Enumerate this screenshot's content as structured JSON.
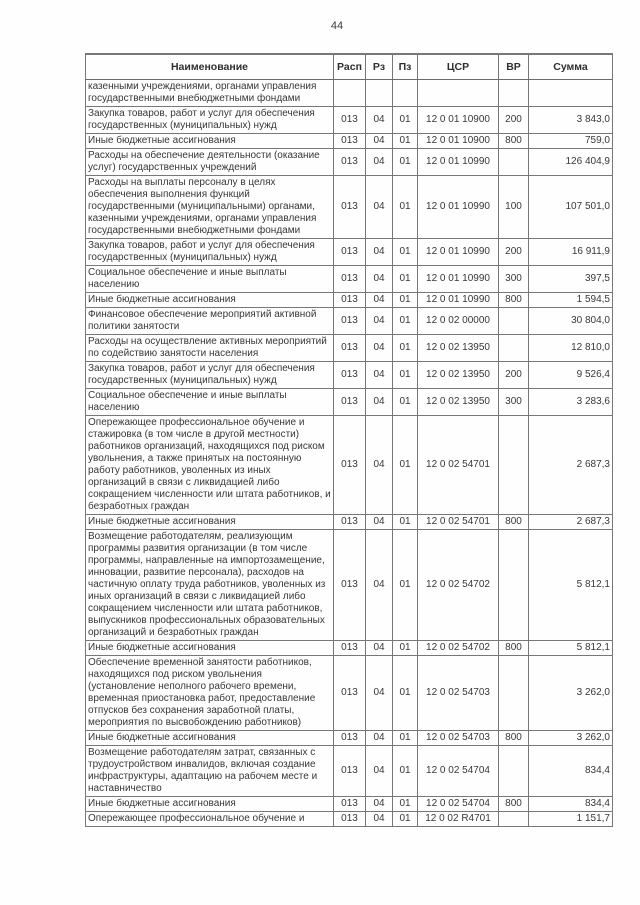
{
  "page": {
    "number": "44"
  },
  "table": {
    "headers": [
      "Наименование",
      "Расп",
      "Рз",
      "Пз",
      "ЦСР",
      "ВР",
      "Сумма"
    ],
    "rows": [
      {
        "name": "казенными учреждениями, органами управления государственными внебюджетными фондами",
        "rasp": "",
        "rz": "",
        "pz": "",
        "csr": "",
        "vr": "",
        "sum": ""
      },
      {
        "name": "Закупка товаров, работ и услуг для обеспечения государственных (муниципальных) нужд",
        "rasp": "013",
        "rz": "04",
        "pz": "01",
        "csr": "12 0 01 10900",
        "vr": "200",
        "sum": "3 843,0"
      },
      {
        "name": "Иные бюджетные ассигнования",
        "rasp": "013",
        "rz": "04",
        "pz": "01",
        "csr": "12 0 01 10900",
        "vr": "800",
        "sum": "759,0"
      },
      {
        "name": "Расходы на обеспечение деятельности (оказание услуг) государственных учреждений",
        "rasp": "013",
        "rz": "04",
        "pz": "01",
        "csr": "12 0 01 10990",
        "vr": "",
        "sum": "126 404,9"
      },
      {
        "name": "Расходы на выплаты персоналу в целях обеспечения выполнения функций государственными (муниципальными) органами, казенными учреждениями, органами управления государственными внебюджетными фондами",
        "rasp": "013",
        "rz": "04",
        "pz": "01",
        "csr": "12 0 01 10990",
        "vr": "100",
        "sum": "107 501,0"
      },
      {
        "name": "Закупка товаров, работ и услуг для обеспечения государственных (муниципальных) нужд",
        "rasp": "013",
        "rz": "04",
        "pz": "01",
        "csr": "12 0 01 10990",
        "vr": "200",
        "sum": "16 911,9"
      },
      {
        "name": "Социальное обеспечение и иные выплаты населению",
        "rasp": "013",
        "rz": "04",
        "pz": "01",
        "csr": "12 0 01 10990",
        "vr": "300",
        "sum": "397,5"
      },
      {
        "name": "Иные бюджетные ассигнования",
        "rasp": "013",
        "rz": "04",
        "pz": "01",
        "csr": "12 0 01 10990",
        "vr": "800",
        "sum": "1 594,5"
      },
      {
        "name": "Финансовое обеспечение мероприятий активной политики занятости",
        "rasp": "013",
        "rz": "04",
        "pz": "01",
        "csr": "12 0 02 00000",
        "vr": "",
        "sum": "30 804,0"
      },
      {
        "name": "Расходы на осуществление активных мероприятий по содействию занятости населения",
        "rasp": "013",
        "rz": "04",
        "pz": "01",
        "csr": "12 0 02 13950",
        "vr": "",
        "sum": "12 810,0"
      },
      {
        "name": "Закупка товаров, работ и услуг для обеспечения государственных (муниципальных) нужд",
        "rasp": "013",
        "rz": "04",
        "pz": "01",
        "csr": "12 0 02 13950",
        "vr": "200",
        "sum": "9 526,4"
      },
      {
        "name": "Социальное обеспечение и иные выплаты населению",
        "rasp": "013",
        "rz": "04",
        "pz": "01",
        "csr": "12 0 02 13950",
        "vr": "300",
        "sum": "3 283,6"
      },
      {
        "name": "Опережающее профессиональное обучение и стажировка (в том числе в другой местности) работников организаций, находящихся под риском увольнения, а также принятых на постоянную работу работников, уволенных из иных организаций в связи с ликвидацией либо сокращением численности или штата работников, и безработных граждан",
        "rasp": "013",
        "rz": "04",
        "pz": "01",
        "csr": "12 0 02 54701",
        "vr": "",
        "sum": "2 687,3"
      },
      {
        "name": "Иные бюджетные ассигнования",
        "rasp": "013",
        "rz": "04",
        "pz": "01",
        "csr": "12 0 02 54701",
        "vr": "800",
        "sum": "2 687,3"
      },
      {
        "name": "Возмещение работодателям, реализующим программы развития организации (в том числе программы, направленные на импортозамещение, инновации, развитие персонала), расходов на частичную оплату труда работников, уволенных из иных организаций в связи с ликвидацией либо сокращением численности или штата работников, выпускников профессиональных образовательных организаций и безработных граждан",
        "rasp": "013",
        "rz": "04",
        "pz": "01",
        "csr": "12 0 02 54702",
        "vr": "",
        "sum": "5 812,1"
      },
      {
        "name": "Иные бюджетные ассигнования",
        "rasp": "013",
        "rz": "04",
        "pz": "01",
        "csr": "12 0 02 54702",
        "vr": "800",
        "sum": "5 812,1"
      },
      {
        "name": "Обеспечение временной занятости работников, находящихся под риском увольнения (установление неполного рабочего времени, временная приостановка работ, предоставление отпусков без сохранения заработной платы, мероприятия по высвобождению работников)",
        "rasp": "013",
        "rz": "04",
        "pz": "01",
        "csr": "12 0 02 54703",
        "vr": "",
        "sum": "3 262,0"
      },
      {
        "name": "Иные бюджетные ассигнования",
        "rasp": "013",
        "rz": "04",
        "pz": "01",
        "csr": "12 0 02 54703",
        "vr": "800",
        "sum": "3 262,0"
      },
      {
        "name": "Возмещение работодателям затрат, связанных с трудоустройством инвалидов, включая создание инфраструктуры, адаптацию на рабочем месте и наставничество",
        "rasp": "013",
        "rz": "04",
        "pz": "01",
        "csr": "12 0 02 54704",
        "vr": "",
        "sum": "834,4"
      },
      {
        "name": "Иные бюджетные ассигнования",
        "rasp": "013",
        "rz": "04",
        "pz": "01",
        "csr": "12 0 02 54704",
        "vr": "800",
        "sum": "834,4"
      },
      {
        "name": "Опережающее профессиональное обучение и",
        "rasp": "013",
        "rz": "04",
        "pz": "01",
        "csr": "12 0 02 R4701",
        "vr": "",
        "sum": "1 151,7"
      }
    ]
  }
}
